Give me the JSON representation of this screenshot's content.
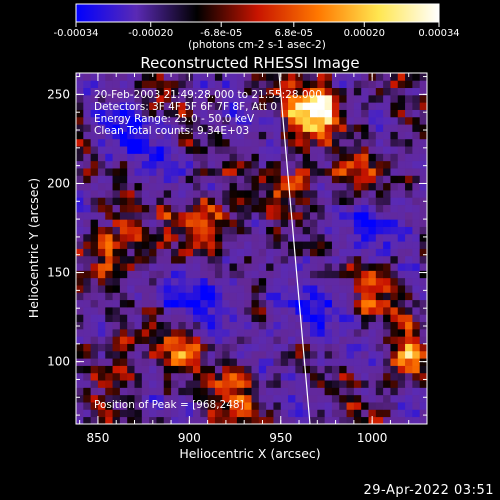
{
  "chart_data": {
    "type": "heatmap",
    "title": "Reconstructed RHESSI Image",
    "xlabel": "Heliocentric X (arcsec)",
    "ylabel": "Heliocentric Y (arcsec)",
    "xlim": [
      838,
      1030
    ],
    "ylim": [
      65,
      262
    ],
    "x_ticks": [
      850,
      900,
      950,
      1000
    ],
    "x_tick_labels": [
      "850",
      "900",
      "950",
      "1000"
    ],
    "y_ticks": [
      100,
      150,
      200,
      250
    ],
    "y_tick_labels": [
      "100",
      "150",
      "200",
      "250"
    ],
    "colorbar": {
      "range": [
        -0.00034,
        0.00034
      ],
      "ticks": [
        -0.00034,
        -0.0002,
        -6.8e-05,
        6.8e-05,
        0.0002,
        0.00034
      ],
      "tick_labels": [
        "-0.00034",
        "-0.00020",
        "-6.8e-05",
        "6.8e-05",
        "0.00020",
        "0.00034"
      ],
      "unit_label": "(photons cm-2 s-1 asec-2)",
      "colors": [
        "#0000ff",
        "#5a2ab4",
        "#000000",
        "#c81400",
        "#ff7800",
        "#ffe650",
        "#ffffff"
      ]
    },
    "annotations": [
      "20-Feb-2003 21:49:28.000 to 21:55:28.000",
      "Detectors: 3F 4F 5F 6F 7F 8F, Att 0",
      "Energy Range: 25.0 - 50.0 keV",
      "Clean     Total counts: 9.34E+03"
    ],
    "peak_label": "Position of Peak = [968,248]",
    "peak": [
      968,
      248
    ],
    "limb_line": [
      [
        949,
        262
      ],
      [
        966,
        65
      ]
    ],
    "bright_sources": [
      {
        "x": 970,
        "y": 242,
        "strength": 1.0
      },
      {
        "x": 955,
        "y": 200,
        "strength": 0.55
      },
      {
        "x": 908,
        "y": 180,
        "strength": 0.6
      },
      {
        "x": 860,
        "y": 165,
        "strength": 0.55
      },
      {
        "x": 895,
        "y": 110,
        "strength": 0.55
      },
      {
        "x": 1018,
        "y": 100,
        "strength": 0.6
      },
      {
        "x": 1002,
        "y": 140,
        "strength": 0.45
      },
      {
        "x": 925,
        "y": 85,
        "strength": 0.45
      },
      {
        "x": 860,
        "y": 100,
        "strength": 0.4
      },
      {
        "x": 995,
        "y": 205,
        "strength": 0.4
      }
    ],
    "dim_regions": [
      {
        "x": 905,
        "y": 135,
        "strength": 0.6
      },
      {
        "x": 965,
        "y": 130,
        "strength": 0.5
      },
      {
        "x": 1000,
        "y": 175,
        "strength": 0.5
      },
      {
        "x": 870,
        "y": 225,
        "strength": 0.4
      }
    ]
  },
  "footer": {
    "date": "29-Apr-2022 03:51"
  }
}
